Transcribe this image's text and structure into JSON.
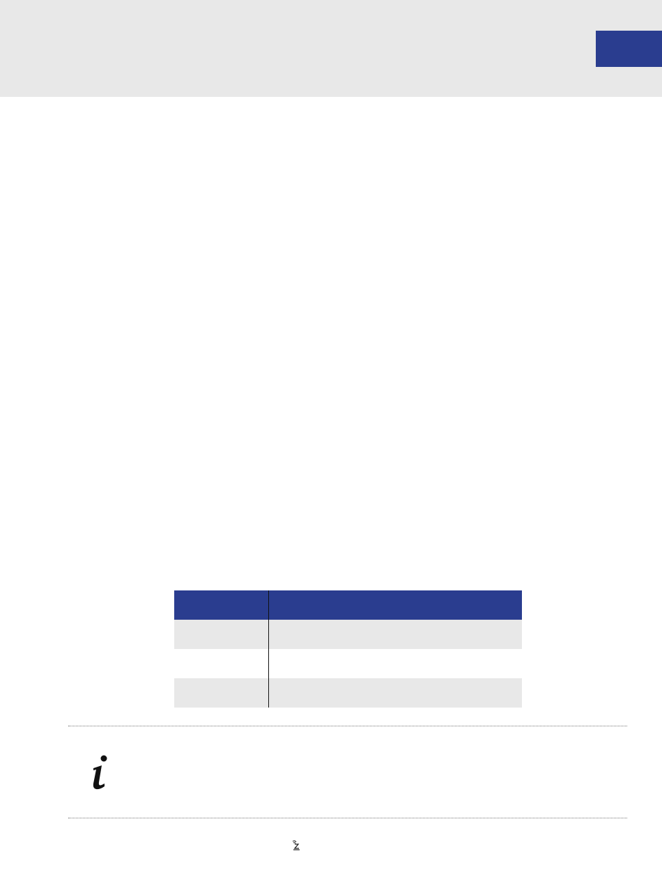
{
  "colors": {
    "accent": "#2a3d8f",
    "band": "#e8e8e8"
  },
  "icons": {
    "info": "info-icon",
    "remote": "remote-signal-icon"
  },
  "table": {
    "rows": 3
  }
}
